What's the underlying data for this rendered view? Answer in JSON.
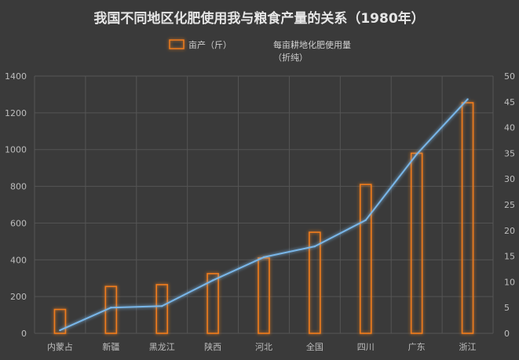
{
  "chart_data": {
    "type": "bar",
    "title": "我国不同地区化肥使用我与粮食产量的关系（1980年）",
    "categories": [
      "内蒙占",
      "新疆",
      "黑龙江",
      "陕西",
      "河北",
      "全国",
      "四川",
      "广东",
      "浙江"
    ],
    "series": [
      {
        "name": "亩产（斤）",
        "type": "bar",
        "axis": "left",
        "values": [
          130,
          255,
          265,
          325,
          410,
          550,
          810,
          980,
          1255
        ]
      },
      {
        "name": "每亩耕地化肥使用量（折纯）",
        "name_lines": [
          "每亩耕地化肥使用量",
          "（折纯）"
        ],
        "type": "line",
        "axis": "right",
        "values": [
          0.6,
          5,
          5.3,
          10.3,
          14.8,
          16.9,
          22,
          34.8,
          45.5
        ]
      }
    ],
    "y_left": {
      "min": 0,
      "max": 1400,
      "ticks": [
        0,
        200,
        400,
        600,
        800,
        1000,
        1200,
        1400
      ]
    },
    "y_right": {
      "min": 0,
      "max": 50,
      "ticks": [
        0,
        5,
        10,
        15,
        20,
        25,
        30,
        35,
        40,
        45,
        50
      ]
    },
    "legend_position": "top",
    "grid": true,
    "colors": {
      "background": "#3a3a3a",
      "grid": "#555555",
      "bar_stroke": "#f07d1e",
      "line": "#79b6e8",
      "text": "#bdbdbd",
      "title": "#e6e6e6"
    }
  }
}
